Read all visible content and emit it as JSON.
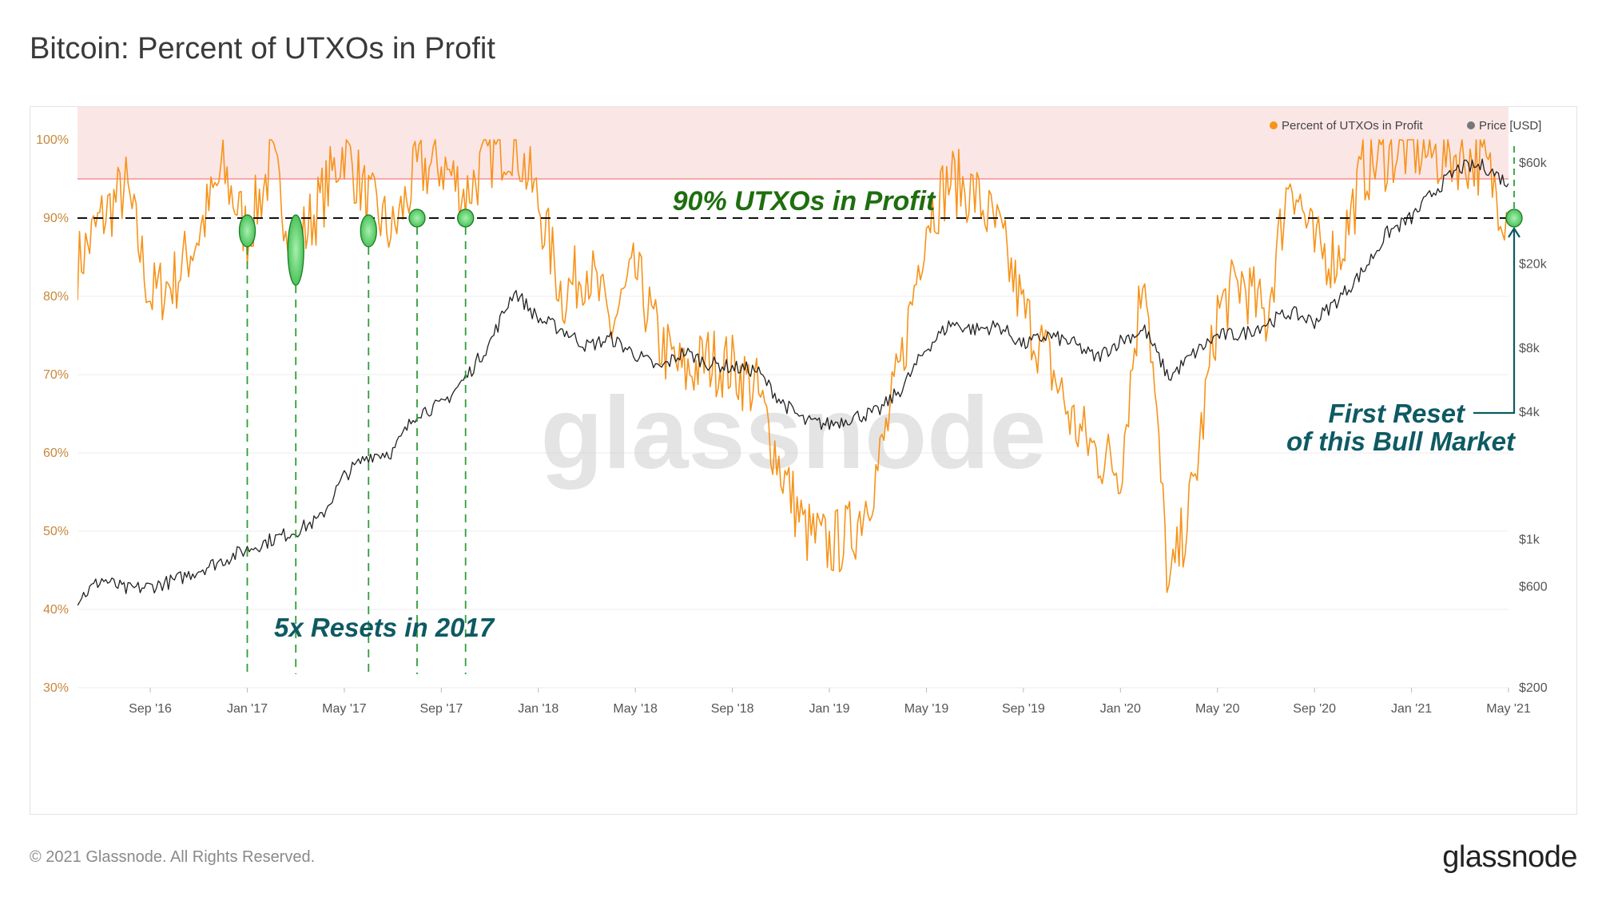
{
  "header": {
    "title": "Bitcoin: Percent of UTXOs in Profit"
  },
  "footer": {
    "copyright": "© 2021 Glassnode. All Rights Reserved.",
    "logo": "glassnode"
  },
  "watermark": "glassnode",
  "colors": {
    "utxo": "#f7931a",
    "price": "#222222",
    "band": "#fbe3e3",
    "band_line": "#f08080",
    "reset": "#2e9e3a",
    "annotation_green": "#1f6e0f",
    "annotation_teal": "#0e5a63"
  },
  "annotations": {
    "threshold_label": "90% UTXOs in Profit",
    "resets_2017": "5x Resets in 2017",
    "first_reset_line1": "First Reset",
    "first_reset_line2": "of this Bull Market"
  },
  "chart_data": {
    "type": "line",
    "title": "Bitcoin: Percent of UTXOs in Profit",
    "legend": {
      "placement": "top-right",
      "items": [
        {
          "name": "Percent of UTXOs in Profit",
          "color": "#f7931a"
        },
        {
          "name": "Price [USD]",
          "color": "#777777"
        }
      ]
    },
    "y_left": {
      "ticks": [
        "30%",
        "40%",
        "50%",
        "60%",
        "70%",
        "80%",
        "90%",
        "100%"
      ],
      "range": [
        30,
        100
      ],
      "overflow_top": 110
    },
    "y_right": {
      "scale": "log",
      "ticks": [
        "$200",
        "$600",
        "$1k",
        "$4k",
        "$8k",
        "$20k",
        "$60k"
      ],
      "tick_values": [
        200,
        600,
        1000,
        4000,
        8000,
        20000,
        60000
      ],
      "range": [
        200,
        60000
      ]
    },
    "x_ticks": [
      "Sep '16",
      "Jan '17",
      "May '17",
      "Sep '17",
      "Jan '18",
      "May '18",
      "Sep '18",
      "Jan '19",
      "May '19",
      "Sep '19",
      "Jan '20",
      "May '20",
      "Sep '20",
      "Jan '21",
      "May '21"
    ],
    "x_range": [
      "2016-06",
      "2021-05"
    ],
    "threshold": 90,
    "red_zone": [
      95,
      110
    ],
    "series": [
      {
        "name": "Percent of UTXOs in Profit",
        "x": [
          "2016-06",
          "2016-07",
          "2016-08",
          "2016-09",
          "2016-10",
          "2016-11",
          "2016-12",
          "2017-01",
          "2017-02",
          "2017-03",
          "2017-04",
          "2017-05",
          "2017-06",
          "2017-07",
          "2017-08",
          "2017-09",
          "2017-10",
          "2017-11",
          "2017-12",
          "2018-01",
          "2018-02",
          "2018-03",
          "2018-04",
          "2018-05",
          "2018-06",
          "2018-07",
          "2018-08",
          "2018-09",
          "2018-10",
          "2018-11",
          "2018-12",
          "2019-01",
          "2019-02",
          "2019-03",
          "2019-04",
          "2019-05",
          "2019-06",
          "2019-07",
          "2019-08",
          "2019-09",
          "2019-10",
          "2019-11",
          "2019-12",
          "2020-01",
          "2020-02",
          "2020-03",
          "2020-04",
          "2020-05",
          "2020-06",
          "2020-07",
          "2020-08",
          "2020-09",
          "2020-10",
          "2020-11",
          "2020-12",
          "2021-01",
          "2021-02",
          "2021-03",
          "2021-04",
          "2021-05"
        ],
        "values": [
          84,
          90,
          94,
          80,
          82,
          88,
          96,
          88,
          97,
          86,
          92,
          99,
          92,
          88,
          96,
          97,
          93,
          98,
          100,
          92,
          80,
          84,
          76,
          83,
          74,
          70,
          72,
          71,
          68,
          58,
          50,
          48,
          50,
          58,
          72,
          90,
          95,
          93,
          88,
          78,
          72,
          64,
          60,
          58,
          85,
          42,
          55,
          78,
          82,
          77,
          96,
          86,
          85,
          96,
          98,
          99,
          98,
          98,
          97,
          90
        ]
      },
      {
        "name": "Price [USD]",
        "x": [
          "2016-06",
          "2016-07",
          "2016-08",
          "2016-09",
          "2016-10",
          "2016-11",
          "2016-12",
          "2017-01",
          "2017-02",
          "2017-03",
          "2017-04",
          "2017-05",
          "2017-06",
          "2017-07",
          "2017-08",
          "2017-09",
          "2017-10",
          "2017-11",
          "2017-12",
          "2018-01",
          "2018-02",
          "2018-03",
          "2018-04",
          "2018-05",
          "2018-06",
          "2018-07",
          "2018-08",
          "2018-09",
          "2018-10",
          "2018-11",
          "2018-12",
          "2019-01",
          "2019-02",
          "2019-03",
          "2019-04",
          "2019-05",
          "2019-06",
          "2019-07",
          "2019-08",
          "2019-09",
          "2019-10",
          "2019-11",
          "2019-12",
          "2020-01",
          "2020-02",
          "2020-03",
          "2020-04",
          "2020-05",
          "2020-06",
          "2020-07",
          "2020-08",
          "2020-09",
          "2020-10",
          "2020-11",
          "2020-12",
          "2021-01",
          "2021-02",
          "2021-03",
          "2021-04",
          "2021-05"
        ],
        "values": [
          520,
          650,
          580,
          600,
          640,
          720,
          800,
          900,
          1000,
          1100,
          1250,
          2000,
          2500,
          2600,
          4000,
          4300,
          5800,
          8500,
          15000,
          11000,
          9800,
          8200,
          8900,
          7500,
          6400,
          7700,
          6800,
          6500,
          6300,
          4500,
          3600,
          3500,
          3800,
          4000,
          5200,
          8000,
          10500,
          9800,
          10200,
          8300,
          9200,
          8500,
          7200,
          8700,
          9800,
          5800,
          7500,
          9200,
          9300,
          10500,
          11800,
          10700,
          13700,
          18500,
          28000,
          33000,
          45000,
          57000,
          58000,
          48000
        ]
      }
    ],
    "reset_markers_2017": [
      "2017-01",
      "2017-03",
      "2017-06",
      "2017-08",
      "2017-10"
    ],
    "first_reset_marker": "2021-05"
  }
}
